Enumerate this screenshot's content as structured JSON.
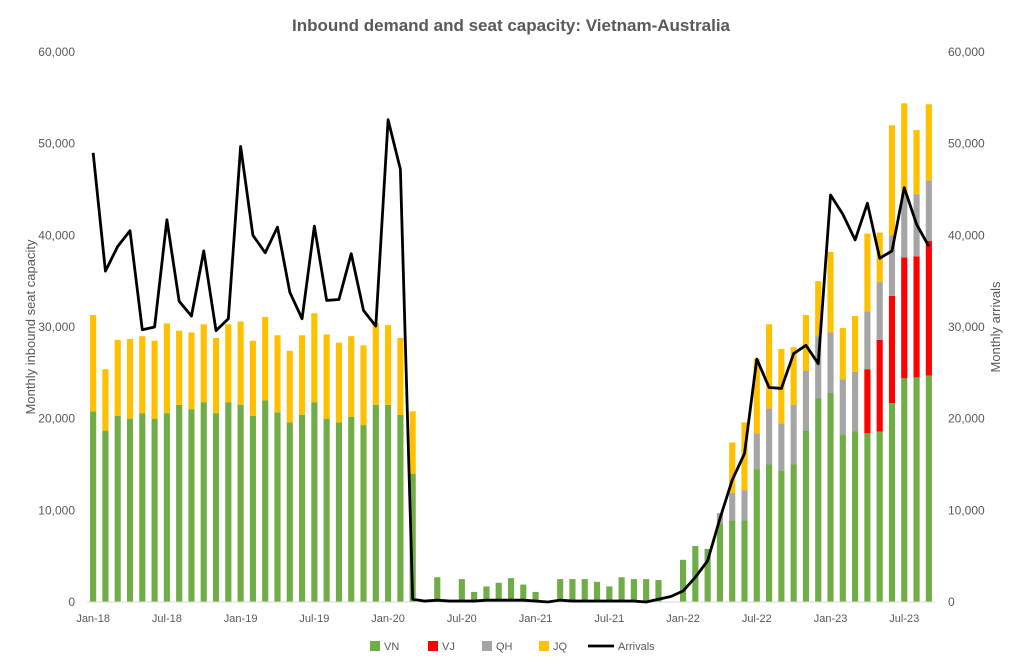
{
  "chart_data": {
    "type": "bar",
    "title": "Inbound demand and seat capacity: Vietnam-Australia",
    "ylabel": "Monthly inbound seat capacity",
    "y2label": "Monthly arrivals",
    "ylim": [
      0,
      60000
    ],
    "y2lim": [
      0,
      60000
    ],
    "y_ticks": [
      "0",
      "10,000",
      "20,000",
      "30,000",
      "40,000",
      "50,000",
      "60,000"
    ],
    "y2_ticks": [
      "0",
      "10,000",
      "20,000",
      "30,000",
      "40,000",
      "50,000",
      "60,000"
    ],
    "x_tick_labels": [
      "Jan-18",
      "Jul-18",
      "Jan-19",
      "Jul-19",
      "Jan-20",
      "Jul-20",
      "Jan-21",
      "Jul-21",
      "Jan-22",
      "Jul-22",
      "Jan-23",
      "Jul-23"
    ],
    "categories": [
      "Jan-18",
      "Feb-18",
      "Mar-18",
      "Apr-18",
      "May-18",
      "Jun-18",
      "Jul-18",
      "Aug-18",
      "Sep-18",
      "Oct-18",
      "Nov-18",
      "Dec-18",
      "Jan-19",
      "Feb-19",
      "Mar-19",
      "Apr-19",
      "May-19",
      "Jun-19",
      "Jul-19",
      "Aug-19",
      "Sep-19",
      "Oct-19",
      "Nov-19",
      "Dec-19",
      "Jan-20",
      "Feb-20",
      "Mar-20",
      "Apr-20",
      "May-20",
      "Jun-20",
      "Jul-20",
      "Aug-20",
      "Sep-20",
      "Oct-20",
      "Nov-20",
      "Dec-20",
      "Jan-21",
      "Feb-21",
      "Mar-21",
      "Apr-21",
      "May-21",
      "Jun-21",
      "Jul-21",
      "Aug-21",
      "Sep-21",
      "Oct-21",
      "Nov-21",
      "Dec-21",
      "Jan-22",
      "Feb-22",
      "Mar-22",
      "Apr-22",
      "May-22",
      "Jun-22",
      "Jul-22",
      "Aug-22",
      "Sep-22",
      "Oct-22",
      "Nov-22",
      "Dec-22",
      "Jan-23",
      "Feb-23",
      "Mar-23",
      "Apr-23",
      "May-23",
      "Jun-23",
      "Jul-23",
      "Aug-23",
      "Sep-23"
    ],
    "stacked": true,
    "series": [
      {
        "name": "VN",
        "color": "#70AD47",
        "values": [
          20800,
          18700,
          20300,
          20000,
          20600,
          20000,
          20600,
          21500,
          21000,
          21800,
          20600,
          21800,
          21500,
          20300,
          22000,
          20700,
          19600,
          20400,
          21800,
          20000,
          19600,
          20200,
          19300,
          21500,
          21500,
          20400,
          14000,
          0,
          2700,
          0,
          2500,
          1100,
          1700,
          2100,
          2600,
          1900,
          1100,
          0,
          2500,
          2500,
          2500,
          2200,
          1700,
          2700,
          2500,
          2500,
          2400,
          0,
          4600,
          6100,
          5800,
          8600,
          8900,
          8900,
          14500,
          15000,
          14300,
          15000,
          18700,
          22200,
          22800,
          18300,
          18600,
          18400,
          18600,
          21700,
          24400,
          24500,
          24700
        ]
      },
      {
        "name": "VJ",
        "color": "#FF0000",
        "values": [
          0,
          0,
          0,
          0,
          0,
          0,
          0,
          0,
          0,
          0,
          0,
          0,
          0,
          0,
          0,
          0,
          0,
          0,
          0,
          0,
          0,
          0,
          0,
          0,
          0,
          0,
          0,
          0,
          0,
          0,
          0,
          0,
          0,
          0,
          0,
          0,
          0,
          0,
          0,
          0,
          0,
          0,
          0,
          0,
          0,
          0,
          0,
          0,
          0,
          0,
          0,
          0,
          0,
          0,
          0,
          0,
          0,
          0,
          0,
          0,
          0,
          0,
          0,
          7000,
          10000,
          11700,
          13200,
          13200,
          14700
        ]
      },
      {
        "name": "QH",
        "color": "#A5A5A5",
        "values": [
          0,
          0,
          0,
          0,
          0,
          0,
          0,
          0,
          0,
          0,
          0,
          0,
          0,
          0,
          0,
          0,
          0,
          0,
          0,
          0,
          0,
          0,
          0,
          0,
          0,
          0,
          0,
          0,
          0,
          0,
          0,
          0,
          0,
          0,
          0,
          0,
          0,
          0,
          0,
          0,
          0,
          0,
          0,
          0,
          0,
          0,
          0,
          0,
          0,
          0,
          0,
          1100,
          3000,
          3300,
          3900,
          6100,
          5200,
          6500,
          6500,
          6800,
          6600,
          6000,
          6500,
          6300,
          6300,
          6600,
          6800,
          6800,
          6600
        ]
      },
      {
        "name": "JQ",
        "color": "#FFC000",
        "values": [
          10500,
          6700,
          8300,
          8700,
          8400,
          8500,
          9800,
          8100,
          8400,
          8500,
          8200,
          8500,
          9100,
          8200,
          9100,
          8400,
          7800,
          8700,
          9700,
          9200,
          8700,
          8800,
          8700,
          8900,
          8700,
          8400,
          6800,
          0,
          0,
          0,
          0,
          0,
          0,
          0,
          0,
          0,
          0,
          0,
          0,
          0,
          0,
          0,
          0,
          0,
          0,
          0,
          0,
          0,
          0,
          0,
          0,
          0,
          5500,
          7400,
          8100,
          9200,
          8100,
          6300,
          6100,
          6000,
          8800,
          5600,
          6100,
          8500,
          5400,
          12000,
          10000,
          7000,
          8300
        ]
      }
    ],
    "line": {
      "name": "Arrivals",
      "color": "#000000",
      "axis": "right",
      "values": [
        49000,
        36100,
        38800,
        40500,
        29700,
        30000,
        41700,
        32800,
        31200,
        38300,
        29600,
        30900,
        49700,
        40000,
        38100,
        40900,
        33800,
        30900,
        41000,
        32900,
        33000,
        38000,
        31800,
        30100,
        52600,
        47200,
        300,
        100,
        200,
        100,
        100,
        100,
        200,
        200,
        200,
        200,
        100,
        0,
        200,
        100,
        100,
        100,
        100,
        100,
        100,
        0,
        300,
        600,
        1200,
        2700,
        4500,
        9100,
        13300,
        16200,
        26500,
        23400,
        23300,
        27100,
        28000,
        26000,
        44400,
        42300,
        39500,
        43500,
        37500,
        38300,
        45200,
        41200,
        38800
      ]
    },
    "legend_position": "bottom",
    "grid": false
  }
}
